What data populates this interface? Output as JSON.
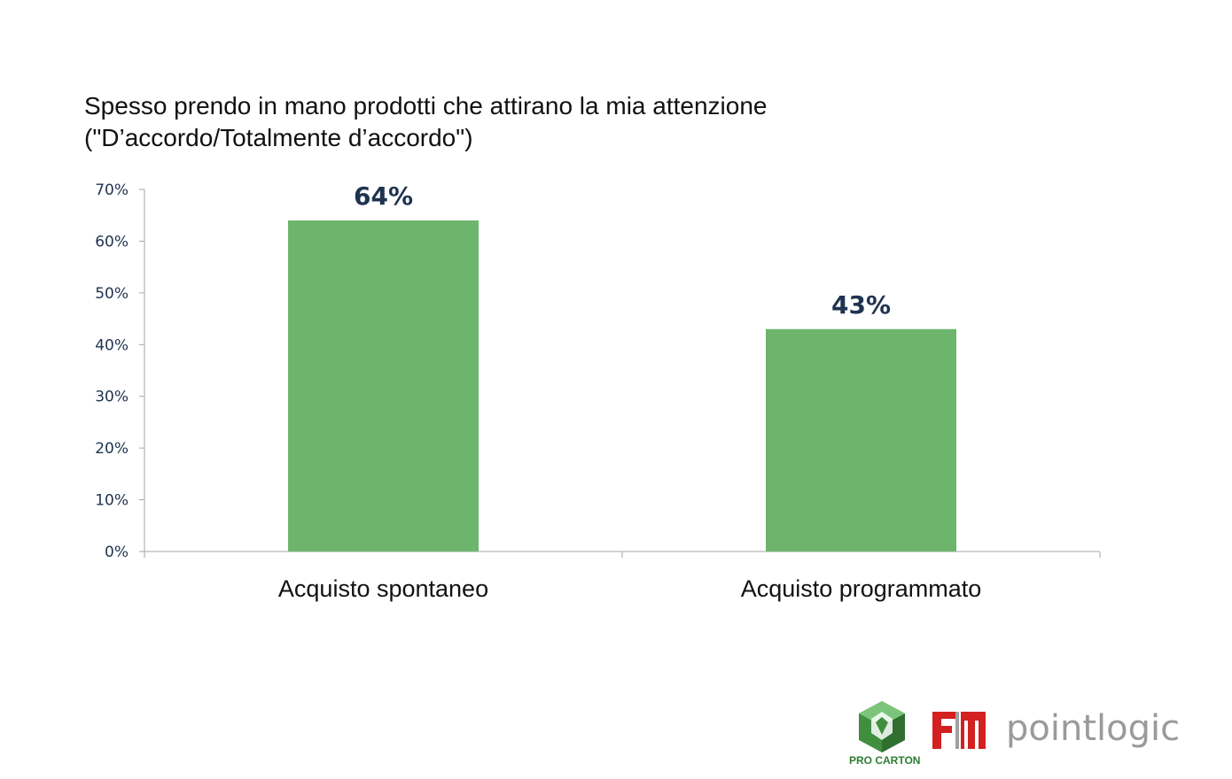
{
  "title": {
    "line1": "Spesso prendo in mano prodotti che attirano la mia attenzione",
    "line2": "(\"D’accordo/Totalmente d’accordo\")"
  },
  "chart_data": {
    "type": "bar",
    "categories": [
      "Acquisto spontaneo",
      "Acquisto programmato"
    ],
    "values": [
      64,
      43
    ],
    "value_labels": [
      "64%",
      "43%"
    ],
    "ylim": [
      0,
      70
    ],
    "yticks": [
      "0%",
      "10%",
      "20%",
      "30%",
      "40%",
      "50%",
      "60%",
      "70%"
    ],
    "grid": false,
    "legend": "none",
    "bar_color": "#6db56d",
    "label_color": "#1f3350",
    "tick_color": "#1f3350"
  },
  "logos": {
    "pro_carton": "PRO CARTON",
    "pointlogic": "pointlogic",
    "fm_logo": "fm-logo"
  }
}
